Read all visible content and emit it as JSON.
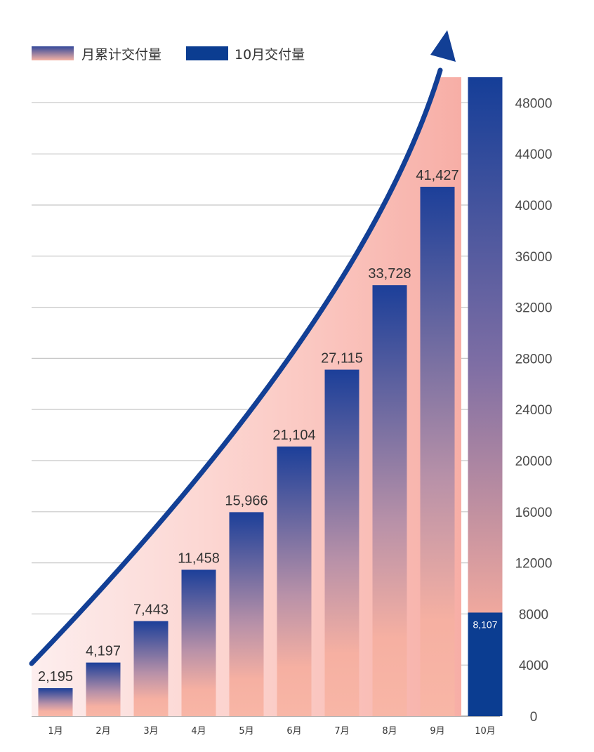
{
  "chart_data": {
    "type": "bar",
    "legend": [
      {
        "name": "月累计交付量",
        "style": "gradient"
      },
      {
        "name": "10月交付量",
        "style": "solid"
      }
    ],
    "categories": [
      "1月",
      "2月",
      "3月",
      "4月",
      "5月",
      "6月",
      "7月",
      "8月",
      "9月",
      "10月"
    ],
    "series": [
      {
        "name": "月累计交付量",
        "values": [
          2195,
          4197,
          7443,
          11458,
          15966,
          21104,
          27115,
          33728,
          41427,
          49534
        ]
      },
      {
        "name": "10月交付量",
        "values": [
          null,
          null,
          null,
          null,
          null,
          null,
          null,
          null,
          null,
          8107
        ]
      }
    ],
    "value_labels": [
      "2,195",
      "4,197",
      "7,443",
      "11,458",
      "15,966",
      "21,104",
      "27,115",
      "33,728",
      "41,427",
      ""
    ],
    "highlight_label": "8,107",
    "yticks": [
      "0",
      "4000",
      "8000",
      "12000",
      "16000",
      "20000",
      "24000",
      "28000",
      "32000",
      "36000",
      "40000",
      "44000",
      "48000"
    ],
    "ylim": [
      0,
      50000
    ],
    "y_axis_position": "right",
    "grid": true,
    "legend_position": "top-left",
    "colors": {
      "bar_top": "#1c3f99",
      "bar_bottom": "#f8b4a4",
      "highlight": "#0b3d91",
      "area": "#f6a8a0",
      "arrow": "#123f95",
      "grid": "#c8c8c8"
    }
  }
}
